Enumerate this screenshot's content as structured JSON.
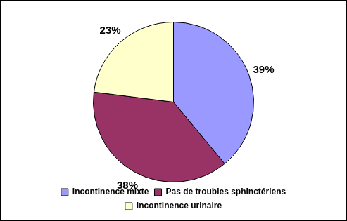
{
  "chart_data": {
    "type": "pie",
    "categories": [
      "Incontinence mixte",
      "Pas de troubles sphinctériens",
      "Incontinence urinaire"
    ],
    "values": [
      39,
      38,
      23
    ],
    "value_labels": [
      "39%",
      "38%",
      "23%"
    ],
    "colors": [
      "#9999ff",
      "#993366",
      "#ffffcc"
    ],
    "data_labels": true,
    "legend": "bottom"
  }
}
